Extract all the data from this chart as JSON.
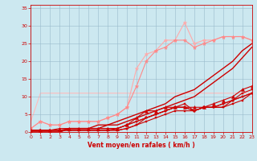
{
  "xlabel": "Vent moyen/en rafales ( km/h )",
  "xlim": [
    0,
    23
  ],
  "ylim": [
    0,
    36
  ],
  "xticks": [
    0,
    1,
    2,
    3,
    4,
    5,
    6,
    7,
    8,
    9,
    10,
    11,
    12,
    13,
    14,
    15,
    16,
    17,
    18,
    19,
    20,
    21,
    22,
    23
  ],
  "yticks": [
    0,
    5,
    10,
    15,
    20,
    25,
    30,
    35
  ],
  "background_color": "#cce8f0",
  "grid_color": "#99bbcc",
  "series": [
    {
      "x": [
        0,
        1,
        2,
        3,
        4,
        5,
        6,
        7,
        8,
        9,
        10,
        11,
        12,
        13,
        14,
        15,
        16,
        17,
        18,
        19,
        20,
        21,
        22,
        23
      ],
      "y": [
        0.5,
        0.5,
        0.5,
        0.5,
        0.5,
        0.5,
        0.5,
        0.5,
        0.5,
        0.5,
        1,
        2,
        3,
        4,
        5,
        6,
        6,
        6,
        7,
        7,
        7,
        8,
        9,
        11
      ],
      "color": "#cc0000",
      "marker": "s",
      "markersize": 2,
      "linewidth": 0.8,
      "zorder": 3
    },
    {
      "x": [
        0,
        1,
        2,
        3,
        4,
        5,
        6,
        7,
        8,
        9,
        10,
        11,
        12,
        13,
        14,
        15,
        16,
        17,
        18,
        19,
        20,
        21,
        22,
        23
      ],
      "y": [
        0.5,
        0.5,
        0.5,
        0.5,
        0.5,
        0.5,
        0.5,
        0.5,
        0.5,
        1,
        2,
        3,
        4,
        5,
        6,
        7,
        8,
        6,
        7,
        7,
        7,
        9,
        10,
        11
      ],
      "color": "#cc0000",
      "marker": "s",
      "markersize": 2,
      "linewidth": 0.8,
      "zorder": 3
    },
    {
      "x": [
        0,
        1,
        2,
        3,
        4,
        5,
        6,
        7,
        8,
        9,
        10,
        11,
        12,
        13,
        14,
        15,
        16,
        17,
        18,
        19,
        20,
        21,
        22,
        23
      ],
      "y": [
        0.5,
        0.5,
        0.5,
        0.5,
        1,
        1,
        1,
        1,
        1,
        1,
        2,
        3,
        4,
        5,
        6,
        7,
        7,
        6,
        7,
        7,
        8,
        9,
        11,
        12
      ],
      "color": "#cc0000",
      "marker": "s",
      "markersize": 2,
      "linewidth": 0.8,
      "zorder": 3
    },
    {
      "x": [
        0,
        1,
        2,
        3,
        4,
        5,
        6,
        7,
        8,
        9,
        10,
        11,
        12,
        13,
        14,
        15,
        16,
        17,
        18,
        19,
        20,
        21,
        22,
        23
      ],
      "y": [
        0.5,
        0.5,
        0.5,
        0.5,
        0.5,
        0.5,
        0.5,
        0.5,
        0.5,
        0.5,
        1,
        2,
        4,
        5,
        6,
        7,
        7,
        6,
        7,
        7,
        8,
        9,
        10,
        11
      ],
      "color": "#cc0000",
      "marker": "s",
      "markersize": 2,
      "linewidth": 0.8,
      "zorder": 3
    },
    {
      "x": [
        0,
        1,
        2,
        3,
        4,
        5,
        6,
        7,
        8,
        9,
        10,
        11,
        12,
        13,
        14,
        15,
        16,
        17,
        18,
        19,
        20,
        21,
        22,
        23
      ],
      "y": [
        0.5,
        0.5,
        0.5,
        1,
        1,
        1,
        1,
        1,
        1,
        1,
        2,
        4,
        6,
        6,
        7,
        7,
        7,
        7,
        7,
        8,
        9,
        10,
        12,
        13
      ],
      "color": "#cc0000",
      "marker": "^",
      "markersize": 3,
      "linewidth": 0.8,
      "zorder": 3
    },
    {
      "x": [
        0,
        1,
        2,
        3,
        4,
        5,
        6,
        7,
        8,
        9,
        10,
        11,
        12,
        13,
        14,
        15,
        16,
        17,
        18,
        19,
        20,
        21,
        22,
        23
      ],
      "y": [
        0,
        0,
        0,
        0,
        1,
        1,
        1,
        1,
        2,
        2,
        3,
        4,
        5,
        6,
        7,
        8,
        9,
        10,
        12,
        14,
        16,
        18,
        21,
        24
      ],
      "color": "#cc0000",
      "marker": null,
      "markersize": 0,
      "linewidth": 1.0,
      "zorder": 2
    },
    {
      "x": [
        0,
        1,
        2,
        3,
        4,
        5,
        6,
        7,
        8,
        9,
        10,
        11,
        12,
        13,
        14,
        15,
        16,
        17,
        18,
        19,
        20,
        21,
        22,
        23
      ],
      "y": [
        0,
        0,
        0,
        0,
        1,
        1,
        1,
        2,
        2,
        3,
        4,
        5,
        6,
        7,
        8,
        10,
        11,
        12,
        14,
        16,
        18,
        20,
        23,
        25
      ],
      "color": "#cc0000",
      "marker": null,
      "markersize": 0,
      "linewidth": 1.0,
      "zorder": 2
    },
    {
      "x": [
        0,
        1,
        2,
        3,
        4,
        5,
        6,
        7,
        8,
        9,
        10,
        11,
        12,
        13,
        14,
        15,
        16,
        17,
        18,
        19,
        20,
        21,
        22,
        23
      ],
      "y": [
        3,
        11,
        11,
        11,
        11,
        11,
        11,
        11,
        11,
        11,
        11,
        11,
        11,
        11,
        11,
        11,
        11,
        11,
        11,
        11,
        11,
        11,
        11,
        11
      ],
      "color": "#ffbbbb",
      "marker": null,
      "markersize": 0,
      "linewidth": 0.8,
      "zorder": 1
    },
    {
      "x": [
        0,
        1,
        2,
        3,
        4,
        5,
        6,
        7,
        8,
        9,
        10,
        11,
        12,
        13,
        14,
        15,
        16,
        17,
        18,
        19,
        20,
        21,
        22,
        23
      ],
      "y": [
        1,
        3,
        2,
        2,
        3,
        3,
        3,
        3,
        4,
        5,
        7,
        18,
        22,
        23,
        26,
        26,
        31,
        25,
        26,
        26,
        27,
        27,
        27,
        26
      ],
      "color": "#ffaaaa",
      "marker": "*",
      "markersize": 3.5,
      "linewidth": 0.8,
      "zorder": 2
    },
    {
      "x": [
        0,
        1,
        2,
        3,
        4,
        5,
        6,
        7,
        8,
        9,
        10,
        11,
        12,
        13,
        14,
        15,
        16,
        17,
        18,
        19,
        20,
        21,
        22,
        23
      ],
      "y": [
        1,
        3,
        2,
        2,
        3,
        3,
        3,
        3,
        4,
        5,
        7,
        13,
        20,
        23,
        24,
        26,
        26,
        24,
        25,
        26,
        27,
        27,
        27,
        26
      ],
      "color": "#ff8888",
      "marker": "*",
      "markersize": 3.5,
      "linewidth": 0.8,
      "zorder": 2
    }
  ]
}
